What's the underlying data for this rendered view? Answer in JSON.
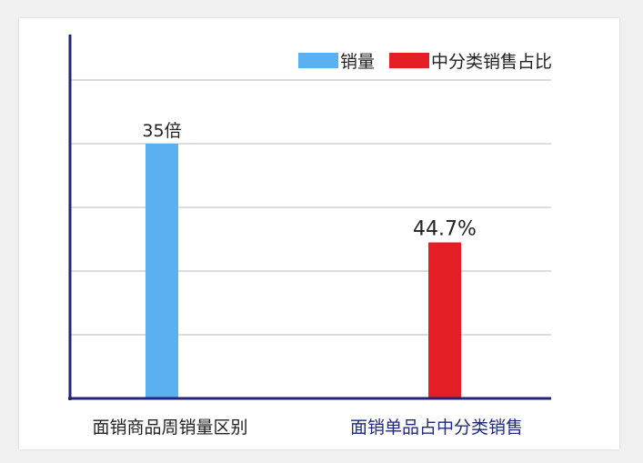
{
  "chart_data": {
    "type": "bar",
    "title": "",
    "xlabel": "",
    "ylabel": "",
    "ylim": [
      0,
      6
    ],
    "grid": true,
    "legend_position": "top-right",
    "categories": [
      "面销商品周销量区别",
      "面销单品占中分类销售"
    ],
    "series": [
      {
        "name": "销量",
        "color": "#5ab0f0",
        "values": [
          4.0,
          null
        ],
        "value_labels": [
          "35倍",
          null
        ]
      },
      {
        "name": "中分类销售占比",
        "color": "#e31e24",
        "values": [
          null,
          2.45
        ],
        "value_labels": [
          null,
          "44.7%"
        ]
      }
    ],
    "category_label_colors": [
      "#222222",
      "#1f2a7a"
    ],
    "axis_color": "#22247a",
    "grid_color": "#dcdcdc"
  }
}
